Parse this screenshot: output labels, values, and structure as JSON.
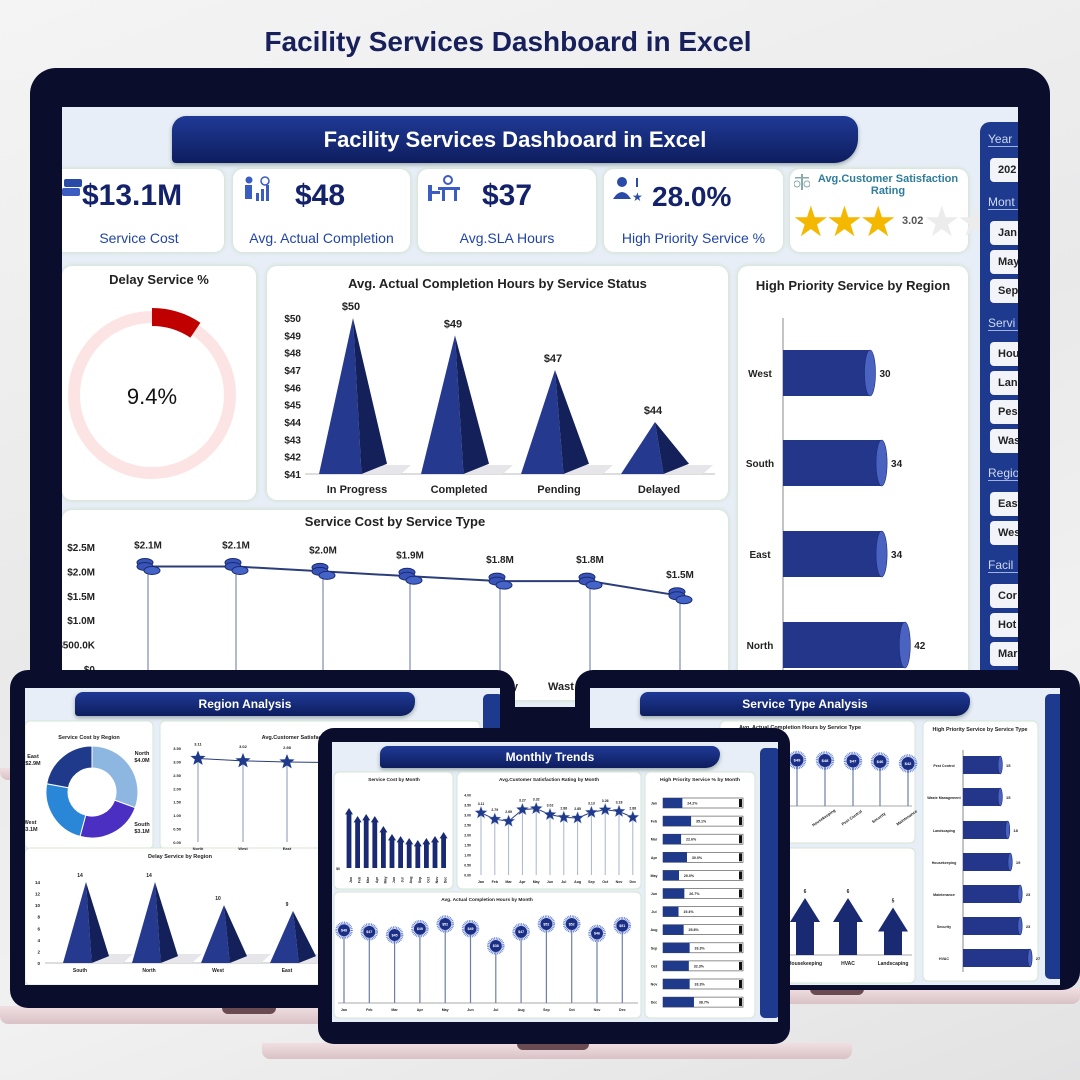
{
  "page_title": "Facility Services Dashboard in Excel",
  "main": {
    "banner": "Facility Services Dashboard in Excel",
    "kpis": [
      {
        "value": "$13.1M",
        "label": "Service Cost",
        "icon": "money-stack-icon"
      },
      {
        "value": "$48",
        "label": "Avg. Actual Completion",
        "icon": "worker-chart-icon"
      },
      {
        "value": "$37",
        "label": "Avg.SLA Hours",
        "icon": "desk-worker-icon"
      },
      {
        "value": "28.0%",
        "label": "High Priority Service %",
        "icon": "user-star-icon"
      }
    ],
    "rating": {
      "title": "Avg.Customer Satisfaction Rating",
      "value": "3.02",
      "stars_filled": 3,
      "stars_total": 5,
      "star_color": "#f5b800"
    },
    "delay": {
      "title": "Delay Service %",
      "value": "9.4%",
      "percent": 9.4,
      "color": "#c00000",
      "track_color": "#fde4e4"
    },
    "slicer": {
      "sections": [
        {
          "header": "Year",
          "items": [
            "202"
          ]
        },
        {
          "header": "Mont",
          "items": [
            "Jan",
            "May",
            "Sep"
          ]
        },
        {
          "header": "Servi",
          "items": [
            "Hou",
            "Lan",
            "Pes",
            "Was"
          ]
        },
        {
          "header": "Regio",
          "items": [
            "East",
            "Wes"
          ]
        },
        {
          "header": "Facil",
          "items": [
            "Cor",
            "Hot",
            "Mar"
          ]
        }
      ]
    }
  },
  "region_screen": {
    "banner": "Region Analysis"
  },
  "monthly_screen": {
    "banner": "Monthly Trends"
  },
  "service_screen": {
    "banner": "Service Type Analysis"
  },
  "colors": {
    "navy": "#1b2a7a",
    "accent": "#1d3a8f",
    "bezel": "#0a0d2b"
  },
  "chart_data": [
    {
      "type": "bar",
      "style": "pyramid",
      "title": "Avg. Actual Completion Hours by Service Status",
      "categories": [
        "In Progress",
        "Completed",
        "Pending",
        "Delayed"
      ],
      "values": [
        50,
        49,
        47,
        44
      ],
      "value_labels": [
        "$50",
        "$49",
        "$47",
        "$44"
      ],
      "ylim": [
        41,
        50
      ],
      "ytick_labels": [
        "$41",
        "$42",
        "$43",
        "$44",
        "$45",
        "$46",
        "$47",
        "$48",
        "$49",
        "$50"
      ]
    },
    {
      "type": "bar",
      "orientation": "horizontal",
      "style": "cylinder",
      "title": "High Priority Service by Region",
      "categories": [
        "West",
        "South",
        "East",
        "North"
      ],
      "values": [
        30,
        34,
        34,
        42
      ],
      "value_labels": [
        "30",
        "34",
        "34",
        "42"
      ]
    },
    {
      "type": "line",
      "title": "Service Cost by Service Type",
      "unit": "$M",
      "values": [
        2.1,
        2.1,
        2.0,
        1.9,
        1.8,
        1.8,
        1.5
      ],
      "value_labels": [
        "$2.1M",
        "$2.1M",
        "$2.0M",
        "$1.9M",
        "$1.8M",
        "$1.8M",
        "$1.5M"
      ],
      "visible_category_fragments": [
        "y",
        "Wast"
      ],
      "ylim": [
        0,
        2.5
      ],
      "ytick_labels": [
        "$0",
        "$500.0K",
        "$1.0M",
        "$1.5M",
        "$2.0M",
        "$2.5M"
      ]
    },
    {
      "type": "pie",
      "style": "donut",
      "title": "Service Cost by Region",
      "categories": [
        "North",
        "South",
        "West",
        "East"
      ],
      "values": [
        4.0,
        3.1,
        3.1,
        2.9
      ],
      "value_labels": [
        "$4.0M",
        "$3.1M",
        "$3.1M",
        "$2.9M"
      ],
      "colors": [
        "#8db7e0",
        "#4a2fc2",
        "#2a86d6",
        "#1f3a8a"
      ]
    },
    {
      "type": "line",
      "title": "Avg.Customer Satisfaction Rating by Region",
      "categories": [
        "North",
        "West",
        "East"
      ],
      "values": [
        3.11,
        3.02,
        2.98
      ],
      "value_labels": [
        "3.11",
        "3.02",
        "2.98"
      ],
      "ylim": [
        0,
        3.5
      ],
      "ytick_labels": [
        "0.00",
        "0.50",
        "1.00",
        "1.50",
        "2.00",
        "2.50",
        "3.00",
        "3.50"
      ]
    },
    {
      "type": "bar",
      "style": "pyramid",
      "title": "Delay Service by Region",
      "categories": [
        "South",
        "North",
        "West",
        "East"
      ],
      "values": [
        14,
        14,
        10,
        9
      ],
      "value_labels": [
        "14",
        "14",
        "10",
        "9"
      ],
      "ylim": [
        0,
        14
      ],
      "ytick_labels": [
        "0",
        "2",
        "4",
        "6",
        "8",
        "10",
        "12",
        "14"
      ]
    },
    {
      "type": "bar",
      "style": "arrow",
      "title": "Service Cost by Month",
      "unit": "$M",
      "categories": [
        "Jan",
        "Feb",
        "Mar",
        "Apr",
        "May",
        "Jun",
        "Jul",
        "Aug",
        "Sep",
        "Oct",
        "Nov",
        "Dec"
      ],
      "values": [
        1.5,
        1.3,
        1.35,
        1.3,
        1.05,
        0.85,
        0.8,
        0.75,
        0.7,
        0.75,
        0.8,
        0.9
      ],
      "ytick_labels": [
        "$0"
      ]
    },
    {
      "type": "line",
      "title": "Avg.Customer Satisfaction Rating by Month",
      "categories": [
        "Jan",
        "Feb",
        "Mar",
        "Apr",
        "May",
        "Jun",
        "Jul",
        "Aug",
        "Sep",
        "Oct",
        "Nov",
        "Dec"
      ],
      "values": [
        3.11,
        2.79,
        2.69,
        3.27,
        3.32,
        3.02,
        2.88,
        2.85,
        3.13,
        3.26,
        3.18,
        2.88
      ],
      "value_labels": [
        "3.11",
        "2.79",
        "2.69",
        "3.27",
        "3.32",
        "3.02",
        "2.88",
        "2.85",
        "3.13",
        "3.26",
        "3.18",
        "2.88"
      ],
      "ylim": [
        0,
        4
      ],
      "ytick_labels": [
        "0.00",
        "0.50",
        "1.00",
        "1.50",
        "2.00",
        "2.50",
        "3.00",
        "3.50",
        "4.00"
      ]
    },
    {
      "type": "bar",
      "orientation": "horizontal",
      "title": "High Priority Service % by Month",
      "categories": [
        "Jan",
        "Feb",
        "Mar",
        "Apr",
        "May",
        "Jun",
        "Jul",
        "Aug",
        "Sep",
        "Oct",
        "Nov",
        "Dec"
      ],
      "values": [
        24.2,
        35.1,
        22.6,
        30.0,
        20.0,
        26.7,
        19.4,
        25.8,
        33.3,
        32.3,
        33.3,
        38.7
      ],
      "value_labels": [
        "24.2%",
        "35.1%",
        "22.6%",
        "30.0%",
        "20.0%",
        "26.7%",
        "19.4%",
        "25.8%",
        "33.3%",
        "32.3%",
        "33.3%",
        "38.7%"
      ],
      "xlim": [
        0,
        100
      ]
    },
    {
      "type": "scatter",
      "style": "lollipop",
      "title": "Avg. Actual Completion Hours by Month",
      "categories": [
        "Jan",
        "Feb",
        "Mar",
        "Apr",
        "May",
        "Jun",
        "Jul",
        "Aug",
        "Sep",
        "Oct",
        "Nov",
        "Dec"
      ],
      "values": [
        48,
        47,
        45,
        49,
        52,
        49,
        38,
        47,
        52,
        52,
        46,
        51
      ],
      "value_labels": [
        "$48",
        "$47",
        "$45",
        "$49",
        "$52",
        "$49",
        "$38",
        "$47",
        "$52",
        "$52",
        "$46",
        "$51"
      ]
    },
    {
      "type": "scatter",
      "style": "lollipop",
      "title": "Avg. Actual Completion Hours by Service Type",
      "categories": [
        "",
        "Housekeeping",
        "Pest Control",
        "Security",
        "Maintenance"
      ],
      "values": [
        49,
        48,
        47,
        46,
        42
      ],
      "value_labels": [
        "$49",
        "$48",
        "$47",
        "$46",
        "$42"
      ]
    },
    {
      "type": "bar",
      "style": "arrow",
      "categories": [
        "Housekeeping",
        "HVAC",
        "Landscaping"
      ],
      "values": [
        6,
        6,
        5
      ],
      "value_labels": [
        "6",
        "6",
        "5"
      ]
    },
    {
      "type": "bar",
      "orientation": "horizontal",
      "style": "cylinder",
      "title": "High Priority Service by Service Type",
      "categories": [
        "Pest Control",
        "Waste Management",
        "Landscaping",
        "Housekeeping",
        "Maintenance",
        "Security",
        "HVAC"
      ],
      "values": [
        15,
        15,
        18,
        19,
        23,
        23,
        27
      ],
      "value_labels": [
        "15",
        "15",
        "18",
        "19",
        "23",
        "23",
        "27"
      ]
    }
  ]
}
